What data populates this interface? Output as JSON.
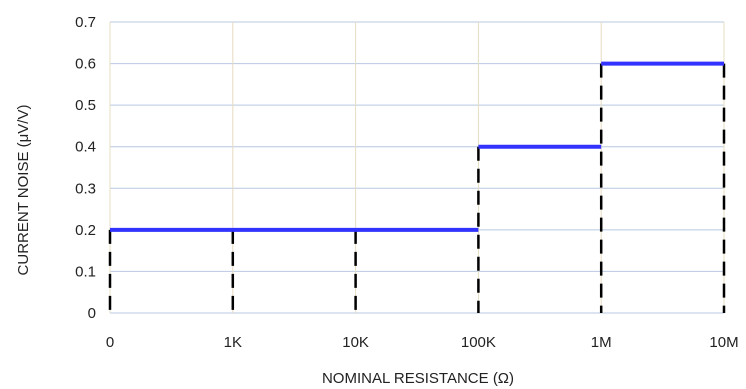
{
  "chart_data": {
    "type": "line",
    "xlabel": "NOMINAL RESISTANCE (Ω)",
    "ylabel": "CURRENT NOISE (μV/V)",
    "x_tick_labels": [
      "0",
      "1K",
      "10K",
      "100K",
      "1M",
      "10M"
    ],
    "y_ticks": [
      0,
      0.1,
      0.2,
      0.3,
      0.4,
      0.5,
      0.6,
      0.7
    ],
    "y_tick_labels": [
      "0",
      "0.1",
      "0.2",
      "0.3",
      "0.4",
      "0.5",
      "0.6",
      "0.7"
    ],
    "ylim": [
      0,
      0.7
    ],
    "grid": true,
    "legend": "none",
    "series": [
      {
        "style": "solid",
        "color": "#3333ff",
        "segments": [
          {
            "x_from": "0",
            "x_to": "100K",
            "y": 0.2
          },
          {
            "x_from": "100K",
            "x_to": "1M",
            "y": 0.4
          },
          {
            "x_from": "1M",
            "x_to": "10M",
            "y": 0.6
          }
        ]
      },
      {
        "style": "dashed",
        "color": "#000000",
        "drop_lines": [
          {
            "x": "0",
            "y": 0.2
          },
          {
            "x": "1K",
            "y": 0.2
          },
          {
            "x": "10K",
            "y": 0.2
          },
          {
            "x": "100K",
            "y": 0.4
          },
          {
            "x": "1M",
            "y": 0.6
          },
          {
            "x": "10M",
            "y": 0.6
          }
        ]
      }
    ],
    "colors": {
      "grid_horizontal": "#b8c9e0",
      "grid_vertical": "#e6dcc2",
      "step_line": "#3333ff",
      "drop_line": "#000000"
    }
  }
}
